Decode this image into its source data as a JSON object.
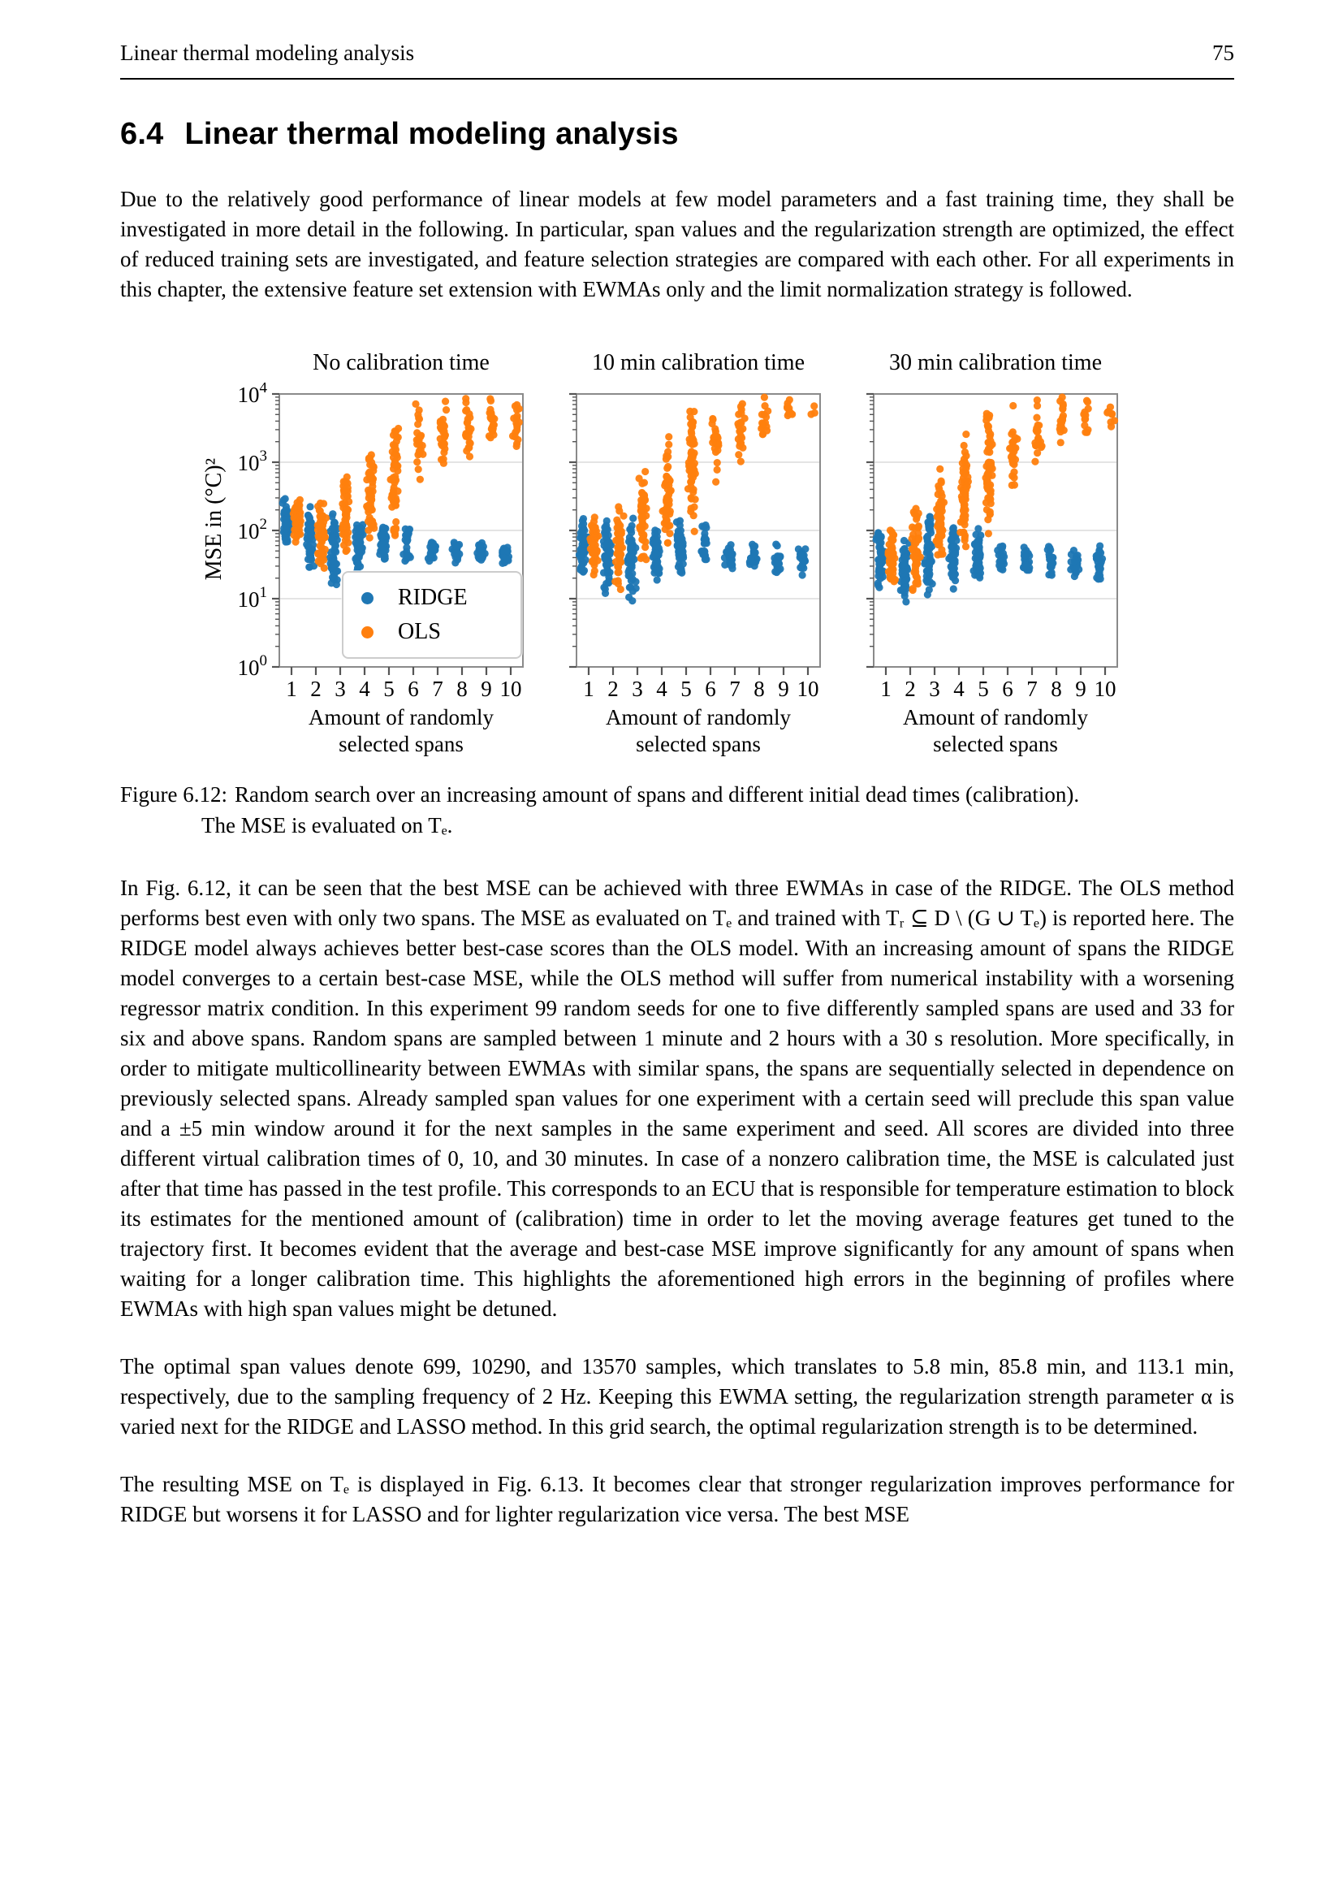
{
  "page": {
    "header_left": "Linear thermal modeling analysis",
    "page_number": "75"
  },
  "section": {
    "number": "6.4",
    "title": "Linear thermal modeling analysis"
  },
  "paragraphs": {
    "intro": "Due to the relatively good performance of linear models at few model parameters and a fast training time, they shall be investigated in more detail in the following. In particular, span values and the regularization strength are optimized, the effect of reduced training sets are investigated, and feature selection strategies are compared with each other. For all experiments in this chapter, the extensive feature set extension with EWMAs only and the limit normalization strategy is followed.",
    "p1": "In Fig. 6.12, it can be seen that the best MSE can be achieved with three EWMAs in case of the RIDGE. The OLS method performs best even with only two spans. The MSE as evaluated on Tₑ and trained with Tᵣ ⊆ D \\ (G ∪ Tₑ) is reported here. The RIDGE model always achieves better best-case scores than the OLS model. With an increasing amount of spans the RIDGE model converges to a certain best-case MSE, while the OLS method will suffer from numerical instability with a worsening regressor matrix condition. In this experiment 99 random seeds for one to five differently sampled spans are used and 33 for six and above spans. Random spans are sampled between 1 minute and 2 hours with a 30 s resolution. More specifically, in order to mitigate multicollinearity between EWMAs with similar spans, the spans are sequentially selected in dependence on previously selected spans. Already sampled span values for one experiment with a certain seed will preclude this span value and a ±5 min window around it for the next samples in the same experiment and seed. All scores are divided into three different virtual calibration times of 0, 10, and 30 minutes. In case of a nonzero calibration time, the MSE is calculated just after that time has passed in the test profile. This corresponds to an ECU that is responsible for temperature estimation to block its estimates for the mentioned amount of (calibration) time in order to let the moving average features get tuned to the trajectory first. It becomes evident that the average and best-case MSE improve significantly for any amount of spans when waiting for a longer calibration time. This highlights the aforementioned high errors in the beginning of profiles where EWMAs with high span values might be detuned.",
    "p2": "The optimal span values denote 699, 10290, and 13570 samples, which translates to 5.8 min, 85.8 min, and 113.1 min, respectively, due to the sampling frequency of 2 Hz. Keeping this EWMA setting, the regularization strength parameter α is varied next for the RIDGE and LASSO method. In this grid search, the optimal regularization strength is to be determined.",
    "p3": "The resulting MSE on Tₑ is displayed in Fig. 6.13. It becomes clear that stronger regularization improves performance for RIDGE but worsens it for LASSO and for lighter regularization vice versa. The best MSE"
  },
  "figure": {
    "caption_label": "Figure 6.12:",
    "caption_line1": "Random search over an increasing amount of spans and different initial dead times (calibration).",
    "caption_line2": "The MSE is evaluated on Tₑ.",
    "ylabel": "MSE in (°C)²",
    "xlabel_line1": "Amount of randomly",
    "xlabel_line2": "selected spans",
    "legend": [
      {
        "label": "RIDGE",
        "color": "#1f77b4"
      },
      {
        "label": "OLS",
        "color": "#ff7f0e"
      }
    ]
  },
  "chart_data": [
    {
      "type": "scatter",
      "title": "No calibration time",
      "xlabel": "Amount of randomly selected spans",
      "ylabel": "MSE in (°C)²",
      "x": [
        1,
        2,
        3,
        4,
        5,
        6,
        7,
        8,
        9,
        10
      ],
      "y_scale": "log",
      "ylim": [
        1,
        10000
      ],
      "y_tick_exponents": [
        0,
        1,
        2,
        3,
        4
      ],
      "grid": true,
      "note": "columns = [log10(MSE) min, log10(MSE) max, approx visible point count] per amount of spans; 99 random seeds for 1-5 spans, 33 for 6+",
      "series": [
        {
          "name": "RIDGE",
          "color": "#1f77b4",
          "columns": [
            [
              1.78,
              2.48,
              55
            ],
            [
              1.28,
              2.45,
              55
            ],
            [
              1.12,
              2.42,
              55
            ],
            [
              1.35,
              2.15,
              55
            ],
            [
              1.48,
              2.12,
              55
            ],
            [
              1.52,
              2.08,
              25
            ],
            [
              1.5,
              1.86,
              25
            ],
            [
              1.5,
              1.86,
              25
            ],
            [
              1.48,
              1.85,
              25
            ],
            [
              1.48,
              1.83,
              25
            ]
          ]
        },
        {
          "name": "OLS",
          "color": "#ff7f0e",
          "columns": [
            [
              1.78,
              2.52,
              55
            ],
            [
              1.3,
              2.48,
              55
            ],
            [
              1.6,
              2.95,
              55
            ],
            [
              1.62,
              3.37,
              55
            ],
            [
              1.75,
              4.0,
              55
            ],
            [
              2.65,
              3.92,
              25
            ],
            [
              2.9,
              4.0,
              25
            ],
            [
              2.95,
              4.0,
              25
            ],
            [
              3.3,
              4.0,
              22
            ],
            [
              2.95,
              4.0,
              18
            ]
          ]
        }
      ]
    },
    {
      "type": "scatter",
      "title": "10 min calibration time",
      "xlabel": "Amount of randomly selected spans",
      "ylabel": "MSE in (°C)²",
      "x": [
        1,
        2,
        3,
        4,
        5,
        6,
        7,
        8,
        9,
        10
      ],
      "y_scale": "log",
      "ylim": [
        1,
        10000
      ],
      "y_tick_exponents": [
        0,
        1,
        2,
        3,
        4
      ],
      "grid": true,
      "note": "columns = [log10(MSE) min, log10(MSE) max, approx visible point count]",
      "series": [
        {
          "name": "RIDGE",
          "color": "#1f77b4",
          "columns": [
            [
              1.3,
              2.2,
              55
            ],
            [
              1.05,
              2.15,
              55
            ],
            [
              0.95,
              2.25,
              55
            ],
            [
              1.2,
              2.1,
              55
            ],
            [
              1.35,
              2.2,
              55
            ],
            [
              1.4,
              2.15,
              25
            ],
            [
              1.35,
              1.82,
              25
            ],
            [
              1.35,
              1.82,
              25
            ],
            [
              1.35,
              1.82,
              25
            ],
            [
              1.3,
              1.78,
              25
            ]
          ]
        },
        {
          "name": "OLS",
          "color": "#ff7f0e",
          "columns": [
            [
              1.3,
              2.25,
              55
            ],
            [
              1.1,
              2.4,
              55
            ],
            [
              1.55,
              2.95,
              55
            ],
            [
              1.6,
              3.45,
              55
            ],
            [
              1.95,
              4.0,
              55
            ],
            [
              2.6,
              3.95,
              25
            ],
            [
              2.95,
              4.0,
              22
            ],
            [
              3.3,
              4.0,
              16
            ],
            [
              3.5,
              4.0,
              10
            ],
            [
              3.5,
              3.95,
              3
            ]
          ]
        }
      ]
    },
    {
      "type": "scatter",
      "title": "30 min calibration time",
      "xlabel": "Amount of randomly selected spans",
      "ylabel": "MSE in (°C)²",
      "x": [
        1,
        2,
        3,
        4,
        5,
        6,
        7,
        8,
        9,
        10
      ],
      "y_scale": "log",
      "ylim": [
        1,
        10000
      ],
      "y_tick_exponents": [
        0,
        1,
        2,
        3,
        4
      ],
      "grid": true,
      "note": "columns = [log10(MSE) min, log10(MSE) max, approx visible point count]",
      "series": [
        {
          "name": "RIDGE",
          "color": "#1f77b4",
          "columns": [
            [
              1.05,
              2.0,
              55
            ],
            [
              0.9,
              1.98,
              55
            ],
            [
              0.95,
              2.3,
              55
            ],
            [
              1.1,
              2.08,
              55
            ],
            [
              1.25,
              2.05,
              55
            ],
            [
              1.35,
              1.78,
              25
            ],
            [
              1.3,
              1.78,
              25
            ],
            [
              1.3,
              1.78,
              25
            ],
            [
              1.3,
              1.78,
              25
            ],
            [
              1.25,
              1.78,
              25
            ]
          ]
        },
        {
          "name": "OLS",
          "color": "#ff7f0e",
          "columns": [
            [
              1.1,
              2.05,
              55
            ],
            [
              0.95,
              2.38,
              55
            ],
            [
              1.45,
              2.92,
              55
            ],
            [
              1.55,
              3.55,
              55
            ],
            [
              1.85,
              4.0,
              55
            ],
            [
              2.55,
              3.95,
              25
            ],
            [
              2.9,
              4.0,
              22
            ],
            [
              3.25,
              4.0,
              18
            ],
            [
              3.3,
              4.0,
              12
            ],
            [
              3.45,
              3.95,
              8
            ]
          ]
        }
      ]
    }
  ]
}
